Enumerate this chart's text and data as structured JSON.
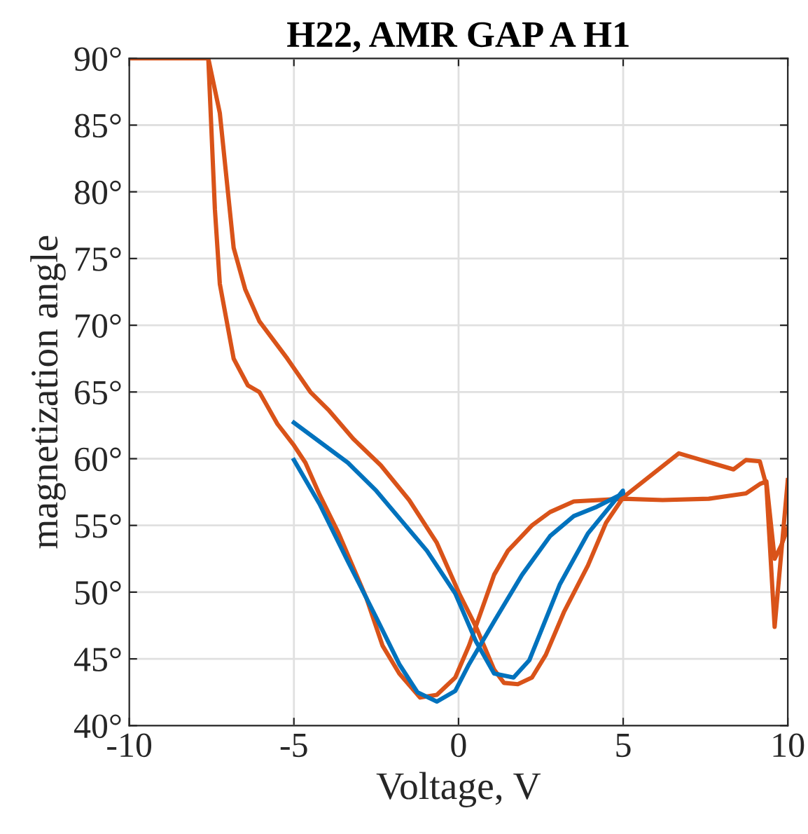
{
  "chart_data": {
    "type": "line",
    "title": "H22, AMR GAP A H1",
    "xlabel": "Voltage, V",
    "ylabel": "magnetization angle",
    "xlim": [
      -10,
      10
    ],
    "xticks": [
      -10,
      -5,
      0,
      5,
      10
    ],
    "ylim": [
      40,
      90
    ],
    "yticks": [
      {
        "value": 40,
        "label": "40°"
      },
      {
        "value": 45,
        "label": "45°"
      },
      {
        "value": 50,
        "label": "50°"
      },
      {
        "value": 55,
        "label": "55°"
      },
      {
        "value": 60,
        "label": "60°"
      },
      {
        "value": 65,
        "label": "65°"
      },
      {
        "value": 70,
        "label": "70°"
      },
      {
        "value": 75,
        "label": "75°"
      },
      {
        "value": 80,
        "label": "80°"
      },
      {
        "value": 85,
        "label": "85°"
      },
      {
        "value": 90,
        "label": "90°"
      }
    ],
    "grid": true,
    "line_style": "solid",
    "marker": "none",
    "series": [
      {
        "color": "#d95319",
        "x": [
          -10,
          -7.6,
          -7.4,
          -7.25,
          -6.83,
          -6.4,
          -6.05,
          -5.5,
          -5.0,
          -4.65,
          -4.22,
          -3.64,
          -2.79,
          -2.31,
          -1.8,
          -1.17,
          -0.66,
          -0.1,
          0.32,
          1.08,
          1.5,
          2.23,
          2.78,
          3.5,
          5.0,
          6.2,
          7.6,
          8.73,
          9.15,
          9.35,
          9.6,
          9.8,
          10
        ],
        "values": [
          90,
          90,
          78.7,
          73.1,
          67.5,
          65.5,
          65.0,
          62.6,
          61.0,
          59.7,
          57.3,
          54.4,
          49.5,
          46.0,
          43.9,
          42.1,
          42.3,
          43.6,
          46.0,
          51.3,
          53.1,
          55.0,
          56.0,
          56.8,
          57.0,
          56.9,
          57.0,
          57.4,
          58.1,
          58.3,
          52.5,
          53.5,
          54.8
        ]
      },
      {
        "color": "#d95319",
        "x": [
          -7.6,
          -7.25,
          -6.83,
          -6.48,
          -6.05,
          -5.2,
          -4.5,
          -3.93,
          -3.2,
          -2.36,
          -1.5,
          -0.66,
          0.02,
          0.53,
          1.08,
          1.38,
          1.8,
          2.23,
          2.65,
          3.2,
          3.93,
          4.48,
          5.0,
          6.69,
          8.35,
          8.73,
          9.15,
          9.35,
          9.6,
          10
        ],
        "values": [
          90,
          85.9,
          75.8,
          72.7,
          70.3,
          67.5,
          65.0,
          63.6,
          61.5,
          59.5,
          56.9,
          53.7,
          49.9,
          47.4,
          44.2,
          43.2,
          43.1,
          43.6,
          45.3,
          48.5,
          52.0,
          55.2,
          57.1,
          60.4,
          59.2,
          59.9,
          59.8,
          58.0,
          47.4,
          58.4
        ]
      },
      {
        "color": "#0072bd",
        "x": [
          -5.0,
          -4.22,
          -3.36,
          -2.5,
          -1.8,
          -1.25,
          -0.66,
          -0.1,
          0.32,
          1.08,
          1.93,
          2.78,
          3.5,
          4.2,
          5.0,
          4.99,
          3.93,
          3.08,
          2.15,
          1.67,
          1.08,
          0.53,
          -0.1,
          -0.96,
          -1.68,
          -2.5,
          -3.36,
          -4.07,
          -5.0
        ],
        "values": [
          59.9,
          56.6,
          52.3,
          48.1,
          44.6,
          42.5,
          41.8,
          42.6,
          44.6,
          47.8,
          51.3,
          54.2,
          55.7,
          56.4,
          57.4,
          57.6,
          54.4,
          50.6,
          44.9,
          43.6,
          43.9,
          46.3,
          49.9,
          53.1,
          55.2,
          57.6,
          59.7,
          61.0,
          62.7
        ]
      }
    ]
  }
}
